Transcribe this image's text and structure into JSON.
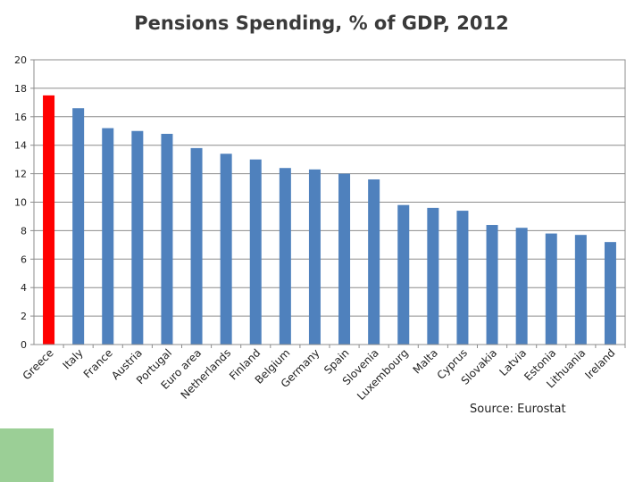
{
  "chart_data": {
    "type": "bar",
    "title": "Pensions Spending, % of GDP, 2012",
    "xlabel": "",
    "ylabel": "",
    "ylim": [
      0,
      20
    ],
    "yticks": [
      0,
      2,
      4,
      6,
      8,
      10,
      12,
      14,
      16,
      18,
      20
    ],
    "grid": true,
    "categories": [
      "Greece",
      "Italy",
      "France",
      "Austria",
      "Portugal",
      "Euro area",
      "Netherlands",
      "Finland",
      "Belgium",
      "Germany",
      "Spain",
      "Slovenia",
      "Luxembourg",
      "Malta",
      "Cyprus",
      "Slovakia",
      "Latvia",
      "Estonia",
      "Lithuania",
      "Ireland"
    ],
    "values": [
      17.5,
      16.6,
      15.2,
      15.0,
      14.8,
      13.8,
      13.4,
      13.0,
      12.4,
      12.3,
      12.0,
      11.6,
      9.8,
      9.6,
      9.4,
      8.4,
      8.2,
      7.8,
      7.7,
      7.2
    ],
    "highlight_index": 0,
    "colors": {
      "bar": "#4f81bd",
      "highlight": "#ff0000",
      "grid": "#8c8c8c",
      "axis": "#8c8c8c"
    }
  },
  "source": "Source: Eurostat",
  "decor": {
    "corner_color": "#9bcf96"
  }
}
